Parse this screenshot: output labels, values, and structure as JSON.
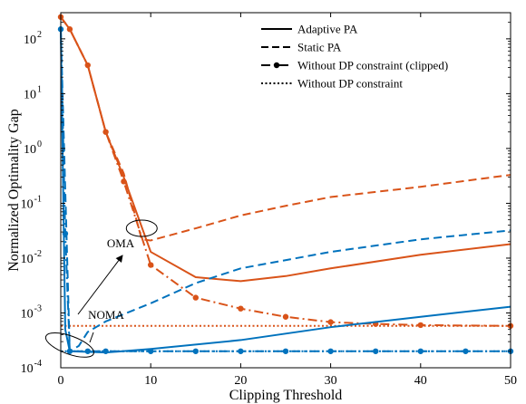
{
  "chart_data": {
    "type": "line",
    "xlabel": "Clipping Threshold",
    "ylabel": "Normalized Optimality Gap",
    "x_scale": "linear",
    "y_scale": "log",
    "xlim": [
      0,
      50
    ],
    "ylim": [
      0.0001,
      300
    ],
    "x_ticks": [
      {
        "value": 0,
        "label": "0"
      },
      {
        "value": 10,
        "label": "10"
      },
      {
        "value": 20,
        "label": "20"
      },
      {
        "value": 30,
        "label": "30"
      },
      {
        "value": 40,
        "label": "40"
      },
      {
        "value": 50,
        "label": "50"
      }
    ],
    "y_ticks": [
      {
        "value": 0.0001,
        "base": "10",
        "exp": "-4"
      },
      {
        "value": 0.001,
        "base": "10",
        "exp": "-3"
      },
      {
        "value": 0.01,
        "base": "10",
        "exp": "-2"
      },
      {
        "value": 0.1,
        "base": "10",
        "exp": "-1"
      },
      {
        "value": 1,
        "base": "10",
        "exp": "0"
      },
      {
        "value": 10,
        "base": "10",
        "exp": "1"
      },
      {
        "value": 100,
        "base": "10",
        "exp": "2"
      }
    ],
    "grid": false,
    "legend_position": "top-right",
    "legend": [
      {
        "label": "Adaptive PA",
        "style": "solid",
        "marker": false
      },
      {
        "label": "Static PA",
        "style": "dashed",
        "marker": false
      },
      {
        "label": "Without DP constraint (clipped)",
        "style": "dashdot",
        "marker": true
      },
      {
        "label": "Without DP constraint",
        "style": "dotted",
        "marker": false
      }
    ],
    "colors": {
      "oma": "#D95319",
      "noma": "#0072BD"
    },
    "annotations": [
      {
        "text": "OMA",
        "group": "oma",
        "target": [
          9,
          0.035
        ]
      },
      {
        "text": "NOMA",
        "group": "noma",
        "target": [
          1,
          0.00026
        ]
      }
    ],
    "series": [
      {
        "group": "oma",
        "style": "solid",
        "marker": false,
        "x": [
          0,
          1,
          3,
          5,
          7,
          10,
          15,
          20,
          25,
          30,
          40,
          50
        ],
        "y": [
          250,
          150,
          33,
          2,
          0.3,
          0.013,
          0.0045,
          0.0038,
          0.0047,
          0.0065,
          0.0115,
          0.018
        ]
      },
      {
        "group": "oma",
        "style": "dashed",
        "marker": false,
        "x": [
          0,
          1,
          3,
          5,
          7,
          9,
          10,
          15,
          20,
          25,
          30,
          40,
          50
        ],
        "y": [
          250,
          150,
          33,
          2,
          0.35,
          0.022,
          0.021,
          0.035,
          0.06,
          0.09,
          0.13,
          0.2,
          0.33
        ]
      },
      {
        "group": "oma",
        "style": "dashdot",
        "marker": true,
        "x": [
          0,
          1,
          3,
          5,
          7,
          10,
          15,
          20,
          25,
          30,
          35,
          40,
          50
        ],
        "y": [
          250,
          150,
          33,
          2,
          0.25,
          0.0075,
          0.0019,
          0.0012,
          0.00085,
          0.00068,
          0.00063,
          0.0006,
          0.00058
        ]
      },
      {
        "group": "oma",
        "style": "dotted",
        "marker": false,
        "x": [
          0,
          50
        ],
        "y": [
          0.00058,
          0.00058
        ]
      },
      {
        "group": "noma",
        "style": "solid",
        "marker": false,
        "x": [
          0,
          0.5,
          1,
          5,
          10,
          20,
          30,
          40,
          50
        ],
        "y": [
          150,
          0.0005,
          0.0002,
          0.00019,
          0.00022,
          0.00032,
          0.00055,
          0.00085,
          0.0013
        ]
      },
      {
        "group": "noma",
        "style": "dashed",
        "marker": false,
        "x": [
          0,
          1,
          2,
          3,
          5,
          10,
          15,
          20,
          30,
          40,
          50
        ],
        "y": [
          150,
          0.0002,
          0.00025,
          0.00045,
          0.0007,
          0.0015,
          0.0035,
          0.0065,
          0.013,
          0.022,
          0.032
        ]
      },
      {
        "group": "noma",
        "style": "dashdot",
        "marker": true,
        "x": [
          0,
          0.5,
          1,
          3,
          5,
          10,
          15,
          20,
          25,
          30,
          35,
          40,
          45,
          50
        ],
        "y": [
          150,
          0.028,
          0.0002,
          0.0002,
          0.0002,
          0.0002,
          0.0002,
          0.0002,
          0.0002,
          0.0002,
          0.0002,
          0.0002,
          0.0002,
          0.0002
        ]
      },
      {
        "group": "noma",
        "style": "dotted",
        "marker": false,
        "x": [
          0,
          50
        ],
        "y": [
          0.0002,
          0.0002
        ]
      }
    ]
  }
}
